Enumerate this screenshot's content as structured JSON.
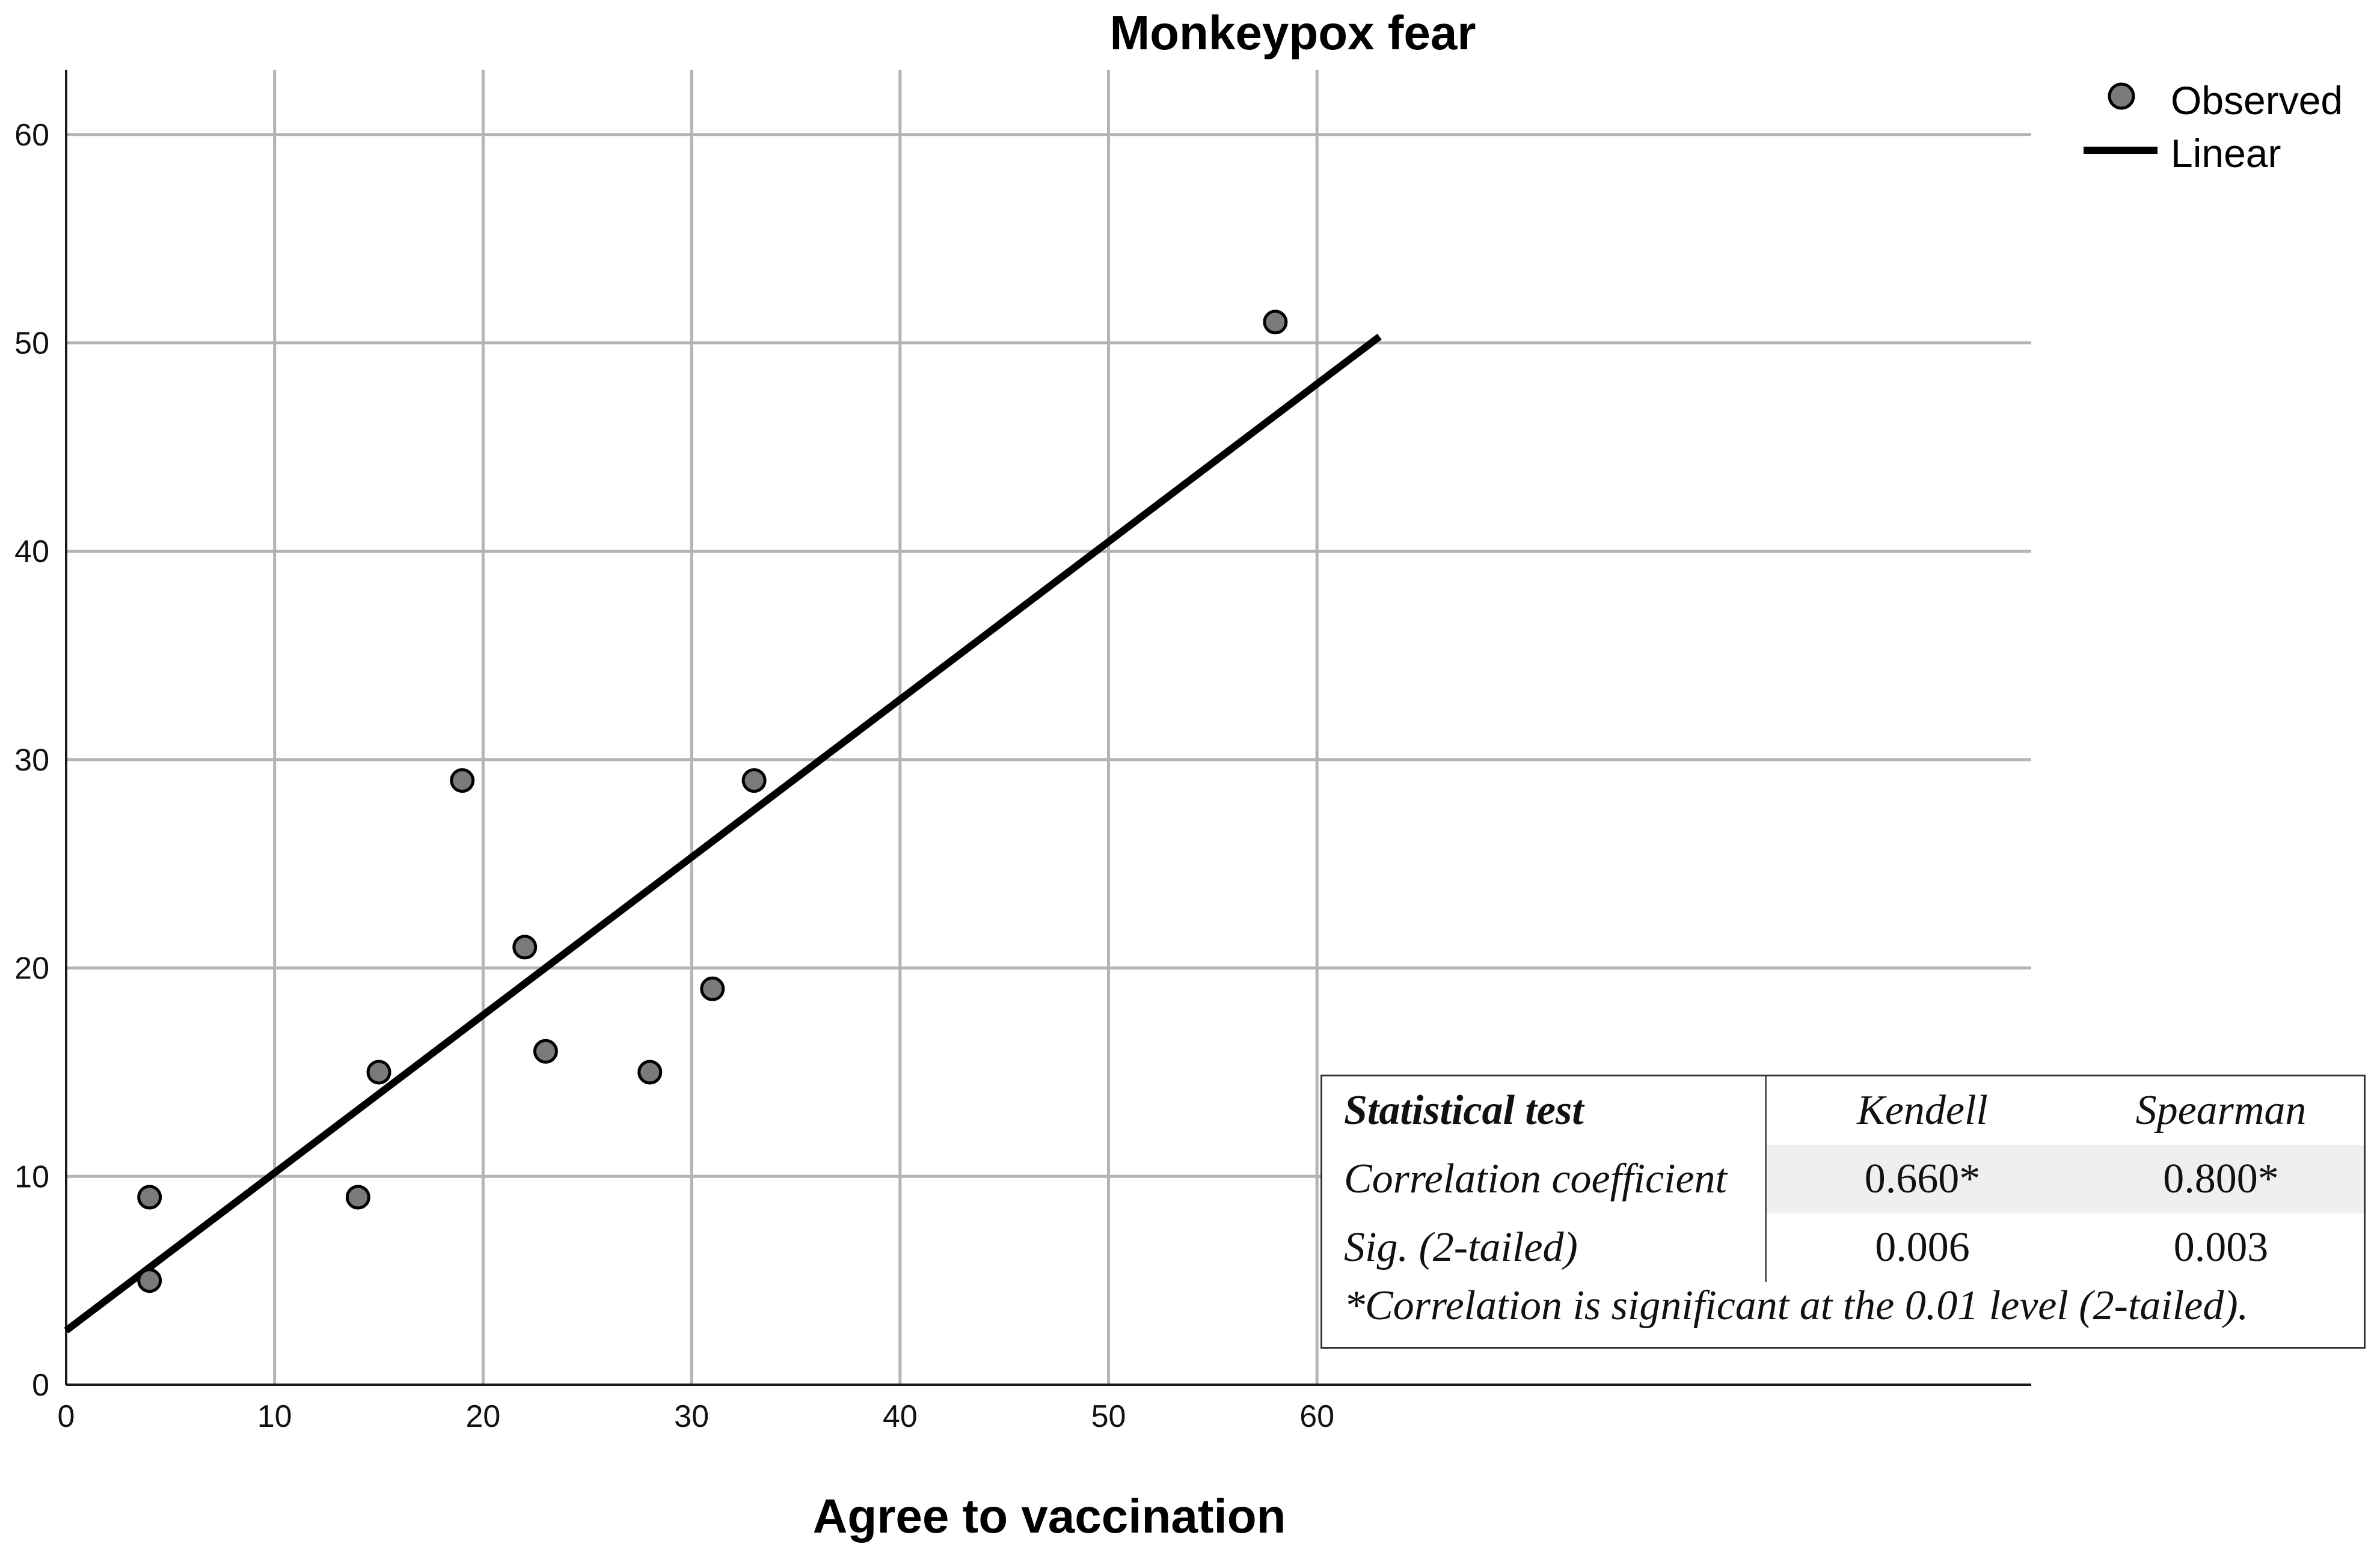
{
  "chart_data": {
    "type": "scatter",
    "title": "Monkeypox fear",
    "xlabel": "Agree to vaccination",
    "ylabel": "",
    "xlim": [
      0,
      63
    ],
    "ylim": [
      0,
      63
    ],
    "xticks": [
      0,
      10,
      20,
      30,
      40,
      50,
      60
    ],
    "yticks": [
      0,
      10,
      20,
      30,
      40,
      50,
      60
    ],
    "grid": true,
    "legend": {
      "position": "top-right",
      "entries": [
        "Observed",
        "Linear"
      ]
    },
    "series": [
      {
        "name": "Observed",
        "kind": "scatter",
        "points": [
          [
            4,
            9
          ],
          [
            4,
            5
          ],
          [
            14,
            9
          ],
          [
            15,
            15
          ],
          [
            19,
            29
          ],
          [
            22,
            21
          ],
          [
            23,
            16
          ],
          [
            28,
            15
          ],
          [
            31,
            19
          ],
          [
            33,
            29
          ],
          [
            58,
            51
          ]
        ]
      },
      {
        "name": "Linear",
        "kind": "line",
        "x": [
          0,
          63
        ],
        "y": [
          2.6,
          50.3
        ]
      }
    ]
  },
  "stats_table": {
    "header": {
      "label": "Statistical test",
      "col1": "Kendell",
      "col2": "Spearman"
    },
    "rows": [
      {
        "label": "Correlation coefficient",
        "col1": "0.660*",
        "col2": "0.800*"
      },
      {
        "label": "Sig. (2-tailed)",
        "col1": "0.006",
        "col2": "0.003"
      }
    ],
    "footnote": "*Correlation is significant at the 0.01 level (2-tailed)."
  }
}
